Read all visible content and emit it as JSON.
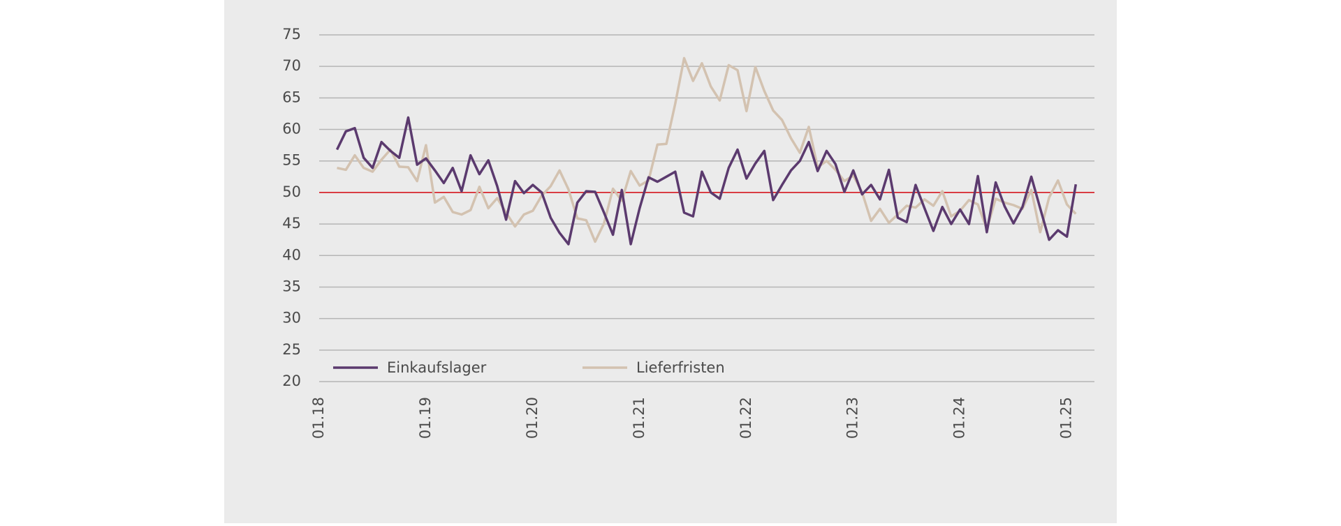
{
  "chart_data": {
    "type": "line",
    "x": [
      "03.18",
      "04.18",
      "05.18",
      "06.18",
      "07.18",
      "08.18",
      "09.18",
      "10.18",
      "11.18",
      "12.18",
      "01.19",
      "02.19",
      "03.19",
      "04.19",
      "05.19",
      "06.19",
      "07.19",
      "08.19",
      "09.19",
      "10.19",
      "11.19",
      "12.19",
      "01.20",
      "02.20",
      "03.20",
      "04.20",
      "05.20",
      "06.20",
      "07.20",
      "08.20",
      "09.20",
      "10.20",
      "11.20",
      "12.20",
      "01.21",
      "02.21",
      "03.21",
      "04.21",
      "05.21",
      "06.21",
      "07.21",
      "08.21",
      "09.21",
      "10.21",
      "11.21",
      "12.21",
      "01.22",
      "02.22",
      "03.22",
      "04.22",
      "05.22",
      "06.22",
      "07.22",
      "08.22",
      "09.22",
      "10.22",
      "11.22",
      "12.22",
      "01.23",
      "02.23",
      "03.23",
      "04.23",
      "05.23",
      "06.23",
      "07.23",
      "08.23",
      "09.23",
      "10.23",
      "11.23",
      "12.23",
      "01.24",
      "02.24",
      "03.24",
      "04.24",
      "05.24",
      "06.24",
      "07.24",
      "08.24",
      "09.24",
      "10.24",
      "11.24",
      "12.24",
      "01.25",
      "02.25"
    ],
    "series": [
      {
        "name": "Einkaufslager",
        "color": "#5b3a6e",
        "values": [
          56.8,
          59.7,
          60.2,
          55.5,
          53.9,
          58.0,
          56.6,
          55.5,
          61.9,
          54.4,
          55.4,
          53.5,
          51.5,
          53.9,
          50.2,
          55.9,
          52.9,
          55.1,
          51.0,
          45.7,
          51.8,
          49.9,
          51.2,
          50.0,
          46.0,
          43.6,
          41.8,
          48.4,
          50.2,
          50.1,
          46.8,
          43.3,
          50.4,
          41.8,
          47.5,
          52.4,
          51.7,
          52.5,
          53.3,
          46.8,
          46.2,
          53.3,
          50.0,
          49.0,
          53.9,
          56.8,
          52.2,
          54.6,
          56.6,
          48.8,
          51.2,
          53.5,
          55.0,
          58.0,
          53.4,
          56.6,
          54.5,
          50.1,
          53.5,
          49.7,
          51.2,
          48.9,
          53.6,
          46.0,
          45.3,
          51.2,
          47.5,
          43.9,
          47.7,
          45.0,
          47.3,
          45.0,
          52.6,
          43.7,
          51.6,
          47.8,
          45.1,
          47.7,
          52.5,
          47.5,
          42.5,
          44.0,
          43.0,
          51.3
        ]
      },
      {
        "name": "Lieferfristen",
        "color": "#d3c2b0",
        "values": [
          53.9,
          53.6,
          55.9,
          53.9,
          53.3,
          55.2,
          56.8,
          54.1,
          54.0,
          51.8,
          57.5,
          48.4,
          49.3,
          46.9,
          46.5,
          47.2,
          50.9,
          47.5,
          49.1,
          46.8,
          44.6,
          46.5,
          47.1,
          49.5,
          51.0,
          53.5,
          50.5,
          45.9,
          45.6,
          42.2,
          45.1,
          50.6,
          48.7,
          53.4,
          51.1,
          51.9,
          57.6,
          57.7,
          64.1,
          71.3,
          67.7,
          70.5,
          66.8,
          64.6,
          70.2,
          69.4,
          62.9,
          69.9,
          66.1,
          63.0,
          61.5,
          58.6,
          56.3,
          60.4,
          54.0,
          55.0,
          53.6,
          51.8,
          52.7,
          50.0,
          45.5,
          47.4,
          45.2,
          46.5,
          47.9,
          47.6,
          48.9,
          47.9,
          50.2,
          46.2,
          47.1,
          48.8,
          48.1,
          44.2,
          49.0,
          48.4,
          48.0,
          47.4,
          50.4,
          43.7,
          49.2,
          51.9,
          48.1,
          46.6
        ]
      }
    ],
    "xticks": [
      "01.18",
      "01.19",
      "01.20",
      "01.21",
      "01.22",
      "01.23",
      "01.24",
      "01.25"
    ],
    "ylim": [
      20,
      75
    ],
    "yticks": [
      20,
      25,
      30,
      35,
      40,
      45,
      50,
      55,
      60,
      65,
      70,
      75
    ],
    "grid": true,
    "reference_line": {
      "value": 50,
      "color": "#d9262e"
    },
    "legend": "lower left"
  }
}
